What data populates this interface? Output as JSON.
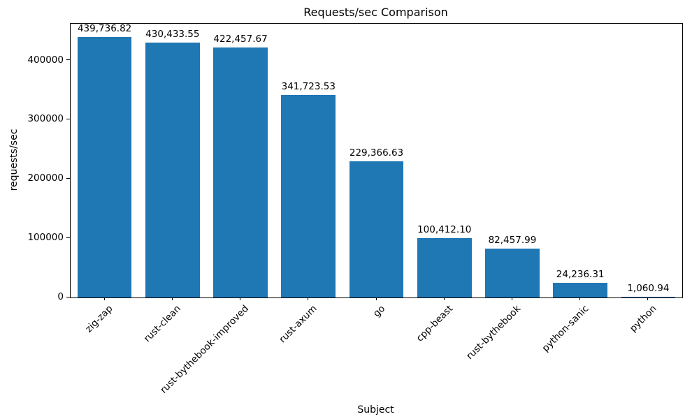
{
  "chart_data": {
    "type": "bar",
    "title": "Requests/sec Comparison",
    "xlabel": "Subject",
    "ylabel": "requests/sec",
    "categories": [
      "zig-zap",
      "rust-clean",
      "rust-bythebook-improved",
      "rust-axum",
      "go",
      "cpp-beast",
      "rust-bythebook",
      "python-sanic",
      "python"
    ],
    "values": [
      439736.82,
      430433.55,
      422457.67,
      341723.53,
      229366.63,
      100412.1,
      82457.99,
      24236.31,
      1060.94
    ],
    "value_labels": [
      "439,736.82",
      "430,433.55",
      "422,457.67",
      "341,723.53",
      "229,366.63",
      "100,412.10",
      "82,457.99",
      "24,236.31",
      "1,060.94"
    ],
    "yticks": [
      0,
      100000,
      200000,
      300000,
      400000
    ],
    "ytick_labels": [
      "0",
      "100000",
      "200000",
      "300000",
      "400000"
    ],
    "ylim": [
      0,
      462000
    ],
    "bar_color": "#1f77b4",
    "grid": false,
    "legend": "none"
  }
}
